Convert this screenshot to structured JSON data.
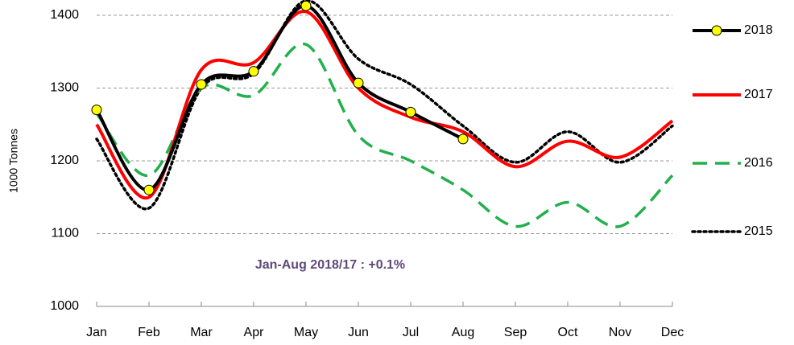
{
  "chart_data": {
    "type": "line",
    "y_label": "1000 Tonnes",
    "annotation": "Jan-Aug 2018/17 :   +0.1%",
    "categories": [
      "Jan",
      "Feb",
      "Mar",
      "Apr",
      "May",
      "Jun",
      "Jul",
      "Aug",
      "Sep",
      "Oct",
      "Nov",
      "Dec"
    ],
    "series": [
      {
        "name": "2018",
        "color": "#000000",
        "linestyle": "solid",
        "marker": "circle",
        "marker_color": "#ffff00",
        "values": [
          1270,
          1160,
          1305,
          1323,
          1413,
          1307,
          1267,
          1230,
          null,
          null,
          null,
          null
        ]
      },
      {
        "name": "2017",
        "color": "#ff0000",
        "linestyle": "solid",
        "values": [
          1250,
          1150,
          1325,
          1335,
          1405,
          1300,
          1260,
          1240,
          1192,
          1227,
          1205,
          1255
        ]
      },
      {
        "name": "2016",
        "color": "#22b04c",
        "linestyle": "dashed",
        "values": [
          1265,
          1180,
          1300,
          1290,
          1360,
          1235,
          1200,
          1160,
          1110,
          1143,
          1110,
          1180
        ]
      },
      {
        "name": "2015",
        "color": "#000000",
        "linestyle": "dotted",
        "values": [
          1230,
          1135,
          1300,
          1320,
          1420,
          1340,
          1305,
          1248,
          1198,
          1240,
          1198,
          1248
        ]
      }
    ],
    "ylim": [
      1000,
      1400
    ],
    "yticks": [
      1000,
      1100,
      1200,
      1300,
      1400
    ],
    "grid": true
  }
}
